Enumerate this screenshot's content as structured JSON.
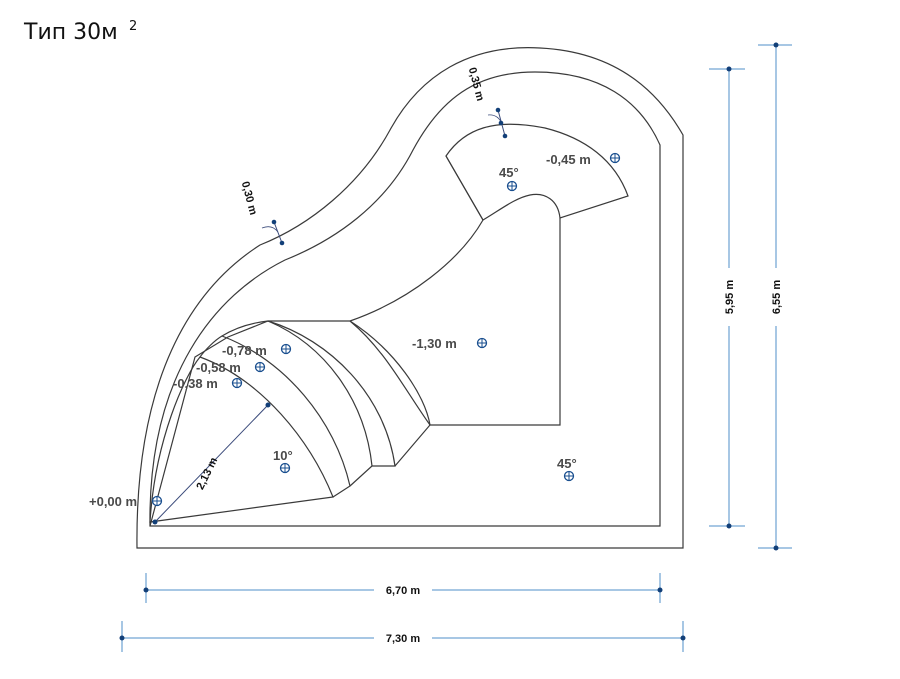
{
  "title": {
    "text": "Тип 30м",
    "sup": "2"
  },
  "levels": {
    "start": "+0,00 m",
    "step1": "-0,38 m",
    "step2": "-0,58 m",
    "step3": "-0,78 m",
    "deep": "-1,30 m",
    "shelf": "-0,45 m"
  },
  "angles": {
    "shelf_slope": "45°",
    "steps_slope": "10°",
    "corner_slope": "45°"
  },
  "dimensions": {
    "radius": "2,13 m",
    "wall_left": "0,30 m",
    "wall_top": "0,35 m",
    "width_inner": "6,70 m",
    "width_outer": "7,30 m",
    "height_inner": "5,95 m",
    "height_outer": "6,55 m"
  }
}
